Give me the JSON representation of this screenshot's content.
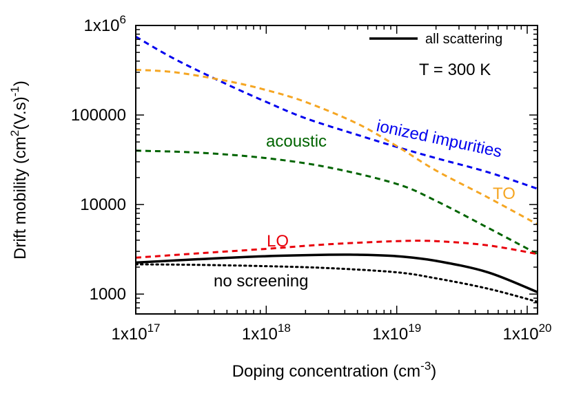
{
  "chart_data": {
    "type": "line",
    "x_scale": "log",
    "y_scale": "log",
    "xlabel": "Doping concentration (cm",
    "xlabel_sup": "-3",
    "xlabel_end": ")",
    "ylabel": "Drift mobility (cm",
    "ylabel_sup1": "2",
    "ylabel_mid": "(V.s)",
    "ylabel_sup2": "-1",
    "ylabel_end": ")",
    "xlim": [
      1e+17,
      1.2e+20
    ],
    "ylim": [
      600,
      1000000
    ],
    "x_ticks": [
      {
        "value": 1e+17,
        "mant": "1x10",
        "exp": "17"
      },
      {
        "value": 1e+18,
        "mant": "1x10",
        "exp": "18"
      },
      {
        "value": 1e+19,
        "mant": "1x10",
        "exp": "19"
      },
      {
        "value": 1e+20,
        "mant": "1x10",
        "exp": "20"
      }
    ],
    "y_ticks": [
      {
        "value": 1000,
        "mant": "1000",
        "exp": ""
      },
      {
        "value": 10000,
        "mant": "10000",
        "exp": ""
      },
      {
        "value": 100000,
        "mant": "100000",
        "exp": ""
      },
      {
        "value": 1000000,
        "mant": "1x10",
        "exp": "6"
      }
    ],
    "legend": {
      "position": "top-right",
      "label": "all scattering"
    },
    "annotations": [
      {
        "id": "temp",
        "text": "T = 300 K",
        "color": "#000000"
      },
      {
        "id": "ionized",
        "text": "ionized impurities",
        "color": "#0000ee"
      },
      {
        "id": "acoustic",
        "text": "acoustic",
        "color": "#006400"
      },
      {
        "id": "to",
        "text": "TO",
        "color": "#f5a623"
      },
      {
        "id": "lo",
        "text": "LO",
        "color": "#e8000b"
      },
      {
        "id": "noscreen",
        "text": "no screening",
        "color": "#000000"
      }
    ],
    "series": [
      {
        "key": "ionized",
        "color": "#0000ee",
        "style": "dashed",
        "x": [
          1e+17,
          2e+17,
          5e+17,
          1e+18,
          2e+18,
          5e+18,
          1e+19,
          2e+19,
          5e+19,
          1.2e+20
        ],
        "y": [
          750000,
          420000,
          220000,
          140000,
          92000,
          60000,
          44000,
          33000,
          23000,
          15000
        ]
      },
      {
        "key": "to",
        "color": "#f5a623",
        "style": "dashed",
        "x": [
          1e+17,
          2e+17,
          5e+17,
          1e+18,
          2e+18,
          5e+18,
          1e+19,
          2e+19,
          5e+19,
          1.2e+20
        ],
        "y": [
          320000,
          300000,
          240000,
          190000,
          140000,
          80000,
          45000,
          24000,
          12000,
          6000
        ]
      },
      {
        "key": "acoustic",
        "color": "#006400",
        "style": "dashed",
        "x": [
          1e+17,
          3e+17,
          1e+18,
          3e+18,
          1e+19,
          2e+19,
          5e+19,
          1.2e+20
        ],
        "y": [
          40000,
          38000,
          33000,
          26000,
          17000,
          11000,
          5500,
          2800
        ]
      },
      {
        "key": "lo",
        "color": "#e8000b",
        "style": "dashed",
        "x": [
          1e+17,
          3e+17,
          1e+18,
          3e+18,
          1e+19,
          2e+19,
          5e+19,
          1.2e+20
        ],
        "y": [
          2550,
          2850,
          3200,
          3600,
          3900,
          3900,
          3500,
          2800
        ]
      },
      {
        "key": "all",
        "color": "#000000",
        "style": "solid",
        "x": [
          1e+17,
          3e+17,
          1e+18,
          3e+18,
          5e+18,
          1e+19,
          2e+19,
          5e+19,
          1.2e+20
        ],
        "y": [
          2250,
          2450,
          2650,
          2750,
          2750,
          2650,
          2350,
          1750,
          1050
        ]
      },
      {
        "key": "noscreen",
        "color": "#000000",
        "style": "dotted",
        "x": [
          1e+17,
          3e+17,
          1e+18,
          3e+18,
          1e+19,
          2e+19,
          5e+19,
          1.2e+20
        ],
        "y": [
          2150,
          2120,
          2050,
          1950,
          1750,
          1500,
          1150,
          820
        ]
      }
    ]
  }
}
